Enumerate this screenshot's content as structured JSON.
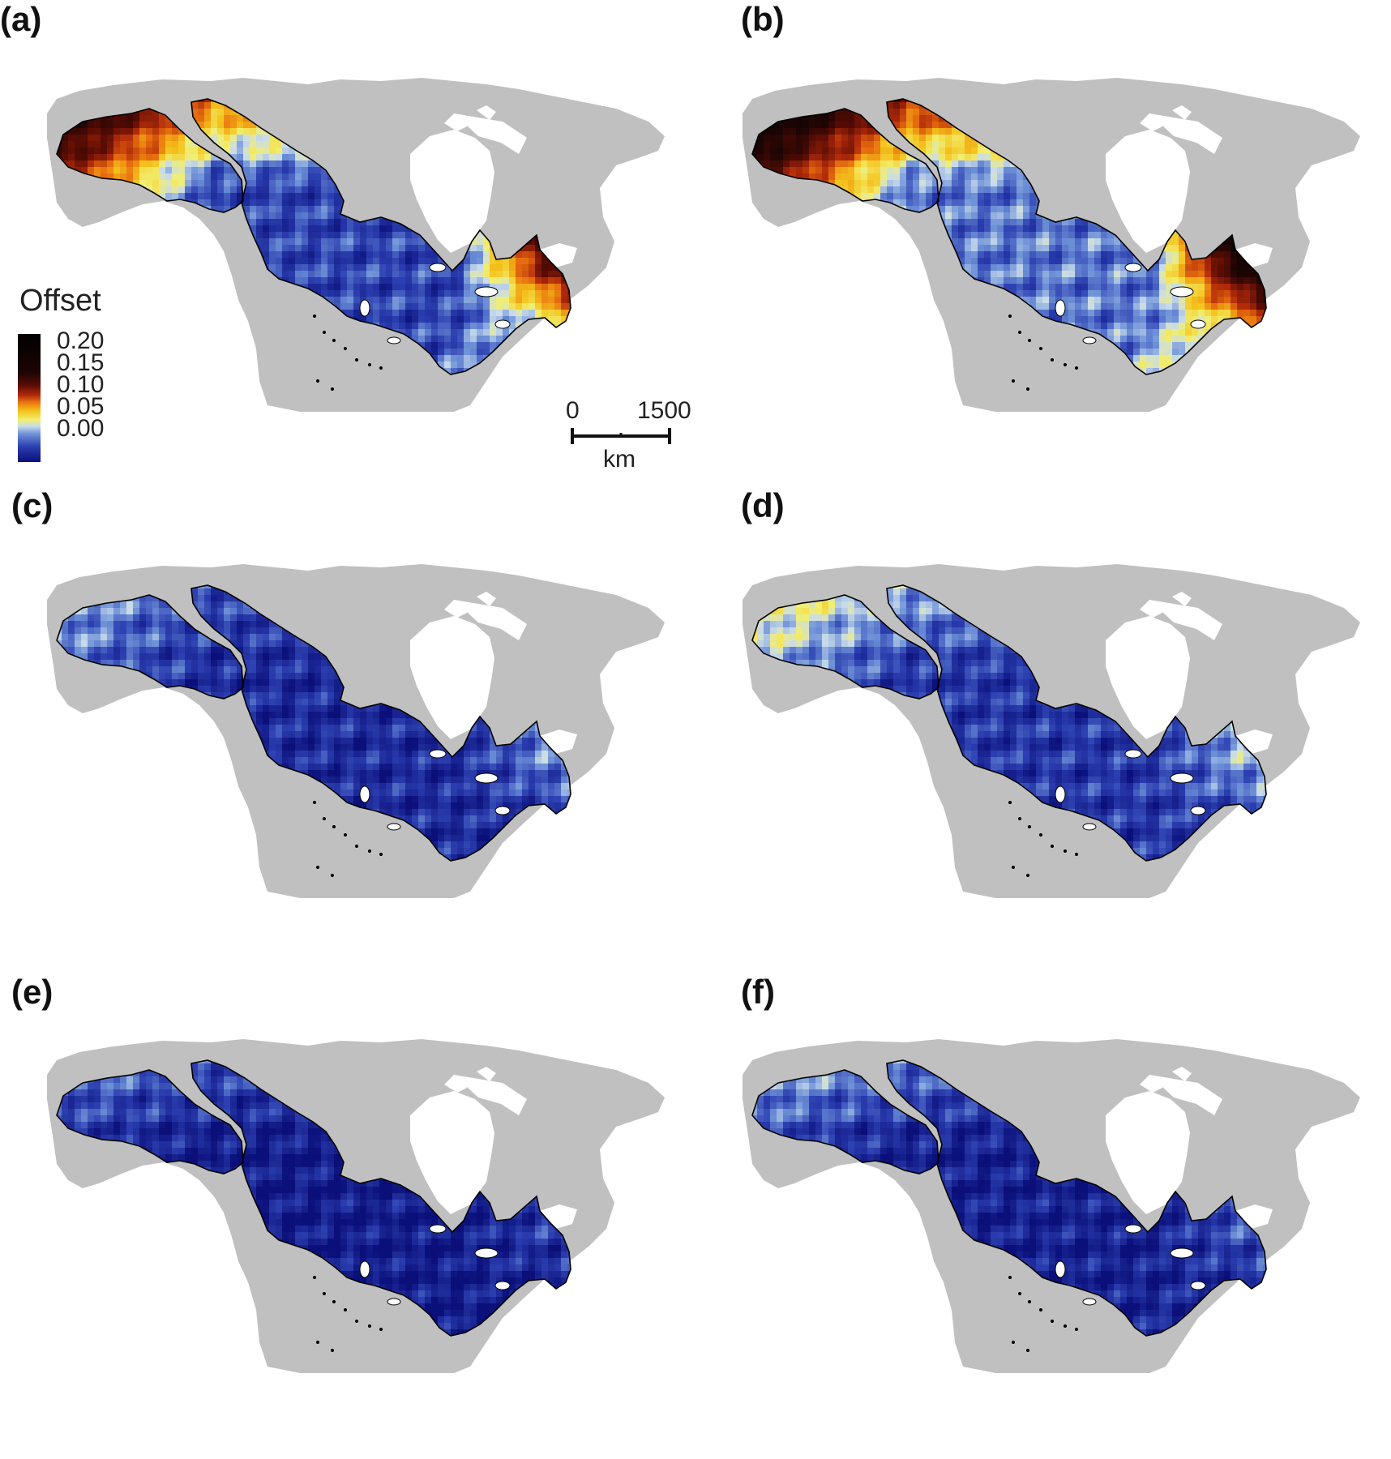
{
  "panels": [
    {
      "label": "(a)",
      "scheme": "hot"
    },
    {
      "label": "(b)",
      "scheme": "hotter"
    },
    {
      "label": "(c)",
      "scheme": "cool"
    },
    {
      "label": "(d)",
      "scheme": "cool2"
    },
    {
      "label": "(e)",
      "scheme": "cold"
    },
    {
      "label": "(f)",
      "scheme": "cold2"
    }
  ],
  "legend": {
    "title": "Offset",
    "ticks": [
      "0.20",
      "0.15",
      "0.10",
      "0.05",
      "0.00"
    ],
    "range": [
      0.0,
      0.22
    ]
  },
  "scalebar": {
    "start_label": "0",
    "end_label": "1500",
    "unit_label": "km"
  },
  "colors": {
    "land": "#c0c0c0",
    "water": "#ffffff",
    "outline": "#000000",
    "low": "#0a0f7a",
    "mid": "#f2ef6e",
    "high": "#000000"
  }
}
